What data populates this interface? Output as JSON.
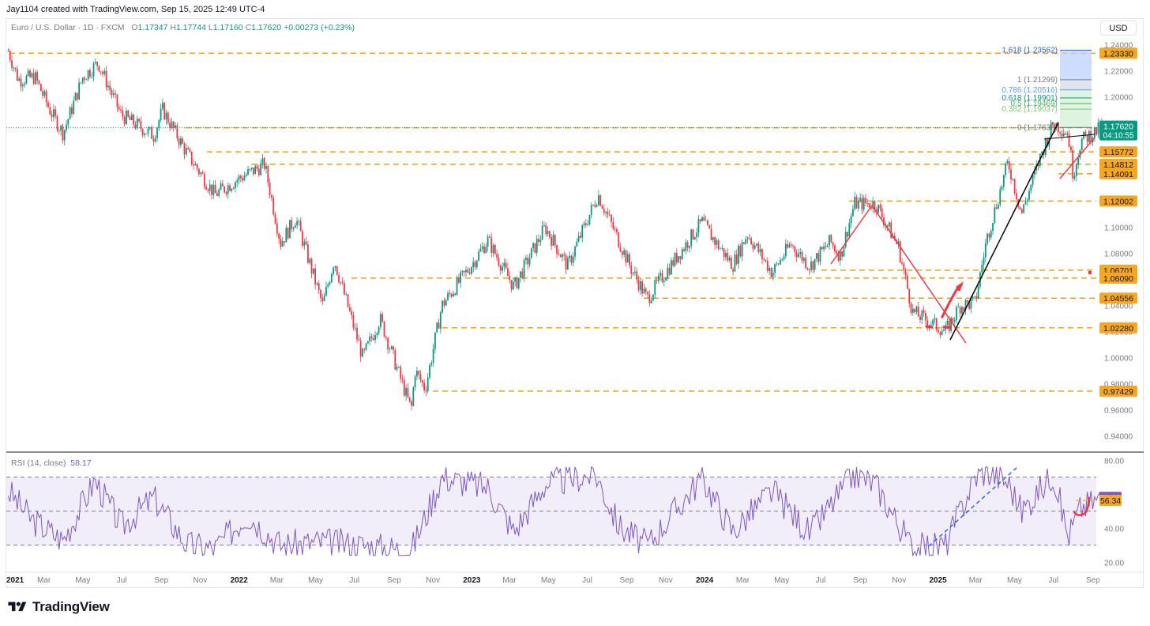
{
  "header": {
    "credit": "Jay1104 created with TradingView.com, Sep 15, 2025 12:49 UTC-4",
    "symbol": "Euro / U.S. Dollar · 1D · FXCM",
    "ohlc": {
      "o_label": "O",
      "o": "1.17347",
      "h_label": "H",
      "h": "1.17744",
      "l_label": "L",
      "l": "1.17160",
      "c_label": "C",
      "c": "1.17620",
      "change": "+0.00273 (+0.23%)"
    },
    "currency": "USD"
  },
  "rsi_header": {
    "label": "RSI (14, close)",
    "value": "58.17"
  },
  "footer": {
    "brand": "TradingView"
  },
  "colors": {
    "up": "#089981",
    "down": "#f23645",
    "level": "#f5b50a",
    "rsi": "#7e57c2",
    "fib_top": "#2962ff",
    "trend_red": "#f23645",
    "trend_black": "#000000"
  },
  "chart_data": [
    {
      "type": "line",
      "title": "Euro / U.S. Dollar · 1D · FXCM",
      "description_series": "candlestick price (approximate daily closes)",
      "x_ticks": [
        "2021",
        "Mar",
        "May",
        "Jul",
        "Sep",
        "Nov",
        "2022",
        "Mar",
        "May",
        "Jul",
        "Sep",
        "Nov",
        "2023",
        "Mar",
        "May",
        "Jul",
        "Sep",
        "Nov",
        "2024",
        "Mar",
        "May",
        "Jul",
        "Sep",
        "Nov",
        "2025",
        "Mar",
        "May",
        "Jul",
        "Sep"
      ],
      "y_ticks": [
        "1.24000",
        "1.22000",
        "1.20000",
        "1.18000",
        "1.16000",
        "1.14000",
        "1.12000",
        "1.10000",
        "1.08000",
        "1.06000",
        "1.04000",
        "1.02000",
        "1.00000",
        "0.98000",
        "0.96000",
        "0.94000"
      ],
      "ylim": [
        0.93,
        1.245
      ],
      "series": [
        {
          "x": [
            "2021-01-04",
            "2021-01-20",
            "2021-02-15",
            "2021-03-10",
            "2021-03-31",
            "2021-05-01",
            "2021-05-25",
            "2021-06-30",
            "2021-08-20",
            "2021-09-03",
            "2021-10-12",
            "2021-11-24",
            "2021-12-31",
            "2022-02-10",
            "2022-03-07",
            "2022-03-31",
            "2022-05-12",
            "2022-05-30",
            "2022-07-14",
            "2022-08-10",
            "2022-09-28",
            "2022-10-04",
            "2022-10-20",
            "2022-11-15",
            "2022-12-30",
            "2023-01-26",
            "2023-03-08",
            "2023-04-26",
            "2023-05-31",
            "2023-07-18",
            "2023-09-08",
            "2023-10-03",
            "2023-10-24",
            "2023-12-28",
            "2024-01-16",
            "2024-02-14",
            "2024-03-08",
            "2024-04-16",
            "2024-05-15",
            "2024-06-14",
            "2024-07-16",
            "2024-08-01",
            "2024-08-23",
            "2024-09-25",
            "2024-10-31",
            "2024-11-22",
            "2025-01-13",
            "2025-02-05",
            "2025-02-28",
            "2025-03-18",
            "2025-04-21",
            "2025-05-12",
            "2025-06-12",
            "2025-07-01",
            "2025-07-24",
            "2025-08-01",
            "2025-08-13",
            "2025-09-15"
          ],
          "values": [
            1.2349,
            1.213,
            1.215,
            1.19,
            1.172,
            1.215,
            1.226,
            1.186,
            1.17,
            1.19,
            1.156,
            1.125,
            1.137,
            1.148,
            1.088,
            1.107,
            1.04,
            1.075,
            1.0,
            1.03,
            0.96,
            0.99,
            0.976,
            1.04,
            1.07,
            1.09,
            1.054,
            1.1,
            1.07,
            1.125,
            1.068,
            1.045,
            1.06,
            1.104,
            1.09,
            1.071,
            1.095,
            1.065,
            1.087,
            1.07,
            1.089,
            1.078,
            1.118,
            1.118,
            1.085,
            1.035,
            1.02,
            1.04,
            1.042,
            1.09,
            1.15,
            1.11,
            1.156,
            1.18,
            1.172,
            1.14,
            1.166,
            1.1762
          ]
        }
      ],
      "horizontal_levels": [
        {
          "label": "1.23330",
          "value": 1.2333
        },
        {
          "label": "1.17615",
          "value": 1.17615
        },
        {
          "label": "1.15772",
          "value": 1.15772
        },
        {
          "label": "1.14812",
          "value": 1.14812
        },
        {
          "label": "1.14091",
          "value": 1.14091
        },
        {
          "label": "1.12002",
          "value": 1.12002
        },
        {
          "label": "1.06701",
          "value": 1.06701
        },
        {
          "label": "1.06090",
          "value": 1.0609
        },
        {
          "label": "1.04556",
          "value": 1.04556
        },
        {
          "label": "1.02280",
          "value": 1.0228
        },
        {
          "label": "0.97429",
          "value": 0.97429
        }
      ],
      "last_price": {
        "value": 1.1762,
        "label": "1.17620",
        "countdown": "04:10:55"
      },
      "fibonacci": [
        {
          "label": "1.618 (1.23562)",
          "value": 1.23562,
          "color": "#2962ff"
        },
        {
          "label": "1 (1.21299)",
          "value": 1.21299,
          "color": "#787b86"
        },
        {
          "label": "0.786 (1.20516)",
          "value": 1.20516,
          "color": "#5b9cf6"
        },
        {
          "label": "0.618 (1.19901)",
          "value": 1.19901,
          "color": "#089981"
        },
        {
          "label": "0.5 (1.19469)",
          "value": 1.19469,
          "color": "#4caf50"
        },
        {
          "label": "0.382 (1.19037)",
          "value": 1.19037,
          "color": "#81c784"
        },
        {
          "label": "0 (1.17638)",
          "value": 1.17638,
          "color": "#787b86"
        }
      ]
    },
    {
      "type": "line",
      "title": "RSI (14, close)",
      "ylim": [
        15,
        82
      ],
      "y_ticks": [
        "80.00",
        "40.00",
        "20.00"
      ],
      "bands": [
        30,
        50,
        70
      ],
      "series": [
        {
          "x": [
            "2021-01-04",
            "2021-02-10",
            "2021-03-31",
            "2021-05-20",
            "2021-07-01",
            "2021-08-20",
            "2021-10-12",
            "2021-11-24",
            "2022-01-14",
            "2022-03-07",
            "2022-05-12",
            "2022-07-14",
            "2022-09-28",
            "2022-11-15",
            "2023-01-26",
            "2023-03-08",
            "2023-04-26",
            "2023-07-14",
            "2023-08-20",
            "2023-10-03",
            "2023-12-28",
            "2024-02-14",
            "2024-04-16",
            "2024-06-14",
            "2024-08-23",
            "2024-09-25",
            "2024-11-22",
            "2025-01-13",
            "2025-02-28",
            "2025-03-18",
            "2025-04-21",
            "2025-05-12",
            "2025-07-01",
            "2025-07-24",
            "2025-08-13",
            "2025-09-15"
          ],
          "values": [
            62,
            45,
            33,
            68,
            41,
            58,
            30,
            28,
            48,
            30,
            32,
            30,
            27,
            70,
            64,
            38,
            66,
            72,
            41,
            30,
            70,
            38,
            62,
            37,
            72,
            66,
            28,
            30,
            70,
            74,
            67,
            50,
            72,
            35,
            52,
            58.17
          ]
        }
      ],
      "last_value": {
        "value": 58.17,
        "label": "58.17"
      },
      "level": {
        "value": 56.34,
        "label": "56.34"
      }
    }
  ]
}
